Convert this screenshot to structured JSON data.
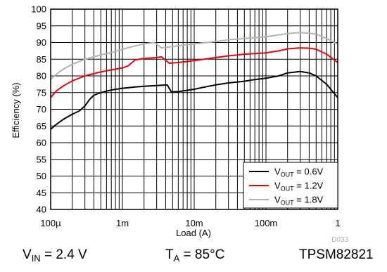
{
  "chart_data": {
    "type": "line",
    "xlabel": "Load (A)",
    "ylabel": "Efficiency (%)",
    "xscale": "log",
    "xlim": [
      0.0001,
      1
    ],
    "ylim": [
      40,
      100
    ],
    "x_ticks": [
      {
        "value": 0.0001,
        "label": "100µ"
      },
      {
        "value": 0.001,
        "label": "1m"
      },
      {
        "value": 0.01,
        "label": "10m"
      },
      {
        "value": 0.1,
        "label": "100m"
      },
      {
        "value": 1,
        "label": "1"
      }
    ],
    "y_ticks": [
      40,
      45,
      50,
      55,
      60,
      65,
      70,
      75,
      80,
      85,
      90,
      95,
      100
    ],
    "grid": true,
    "legend_position": "bottom-right",
    "series": [
      {
        "name": "VOUT = 0.6V",
        "legend_main": "V",
        "legend_sub": "OUT",
        "legend_rest": " = 0.6V",
        "color": "#000000",
        "points": [
          [
            0.0001,
            64
          ],
          [
            0.00012,
            65.5
          ],
          [
            0.00015,
            67
          ],
          [
            0.0002,
            68.5
          ],
          [
            0.00025,
            69.5
          ],
          [
            0.0003,
            71
          ],
          [
            0.00035,
            73
          ],
          [
            0.0004,
            74.2
          ],
          [
            0.0005,
            75
          ],
          [
            0.0007,
            75.8
          ],
          [
            0.001,
            76.3
          ],
          [
            0.0015,
            76.7
          ],
          [
            0.002,
            76.9
          ],
          [
            0.003,
            77.1
          ],
          [
            0.0042,
            77.3
          ],
          [
            0.0048,
            75.2
          ],
          [
            0.006,
            75.3
          ],
          [
            0.01,
            76
          ],
          [
            0.015,
            76.8
          ],
          [
            0.02,
            77.3
          ],
          [
            0.03,
            77.9
          ],
          [
            0.05,
            78.4
          ],
          [
            0.07,
            78.9
          ],
          [
            0.1,
            79.3
          ],
          [
            0.15,
            80
          ],
          [
            0.2,
            80.9
          ],
          [
            0.3,
            81.3
          ],
          [
            0.4,
            80.9
          ],
          [
            0.5,
            80
          ],
          [
            0.7,
            77.5
          ],
          [
            1,
            73.5
          ]
        ]
      },
      {
        "name": "VOUT = 1.2V",
        "legend_main": "V",
        "legend_sub": "OUT",
        "legend_rest": " = 1.2V",
        "color": "#e8000b",
        "points": [
          [
            0.0001,
            73.5
          ],
          [
            0.00012,
            75.5
          ],
          [
            0.00015,
            77
          ],
          [
            0.0002,
            78.5
          ],
          [
            0.0003,
            80
          ],
          [
            0.0005,
            81.2
          ],
          [
            0.0007,
            81.8
          ],
          [
            0.001,
            82.4
          ],
          [
            0.0012,
            83
          ],
          [
            0.0015,
            84.8
          ],
          [
            0.002,
            85.2
          ],
          [
            0.003,
            85.5
          ],
          [
            0.0035,
            85.7
          ],
          [
            0.0045,
            83.8
          ],
          [
            0.006,
            84
          ],
          [
            0.01,
            84.6
          ],
          [
            0.02,
            85.5
          ],
          [
            0.03,
            86
          ],
          [
            0.05,
            86.5
          ],
          [
            0.1,
            86.9
          ],
          [
            0.15,
            87.5
          ],
          [
            0.2,
            88.1
          ],
          [
            0.3,
            88.4
          ],
          [
            0.4,
            88.3
          ],
          [
            0.5,
            88
          ],
          [
            0.7,
            86.5
          ],
          [
            1,
            84
          ]
        ]
      },
      {
        "name": "VOUT = 1.8V",
        "legend_main": "V",
        "legend_sub": "OUT",
        "legend_rest": " = 1.8V",
        "color": "#b3b3b3",
        "points": [
          [
            0.0001,
            79
          ],
          [
            0.00012,
            80.5
          ],
          [
            0.00015,
            82
          ],
          [
            0.0002,
            83.5
          ],
          [
            0.0003,
            85
          ],
          [
            0.0005,
            86.3
          ],
          [
            0.0007,
            87
          ],
          [
            0.001,
            88
          ],
          [
            0.0015,
            89
          ],
          [
            0.002,
            89.6
          ],
          [
            0.0028,
            90
          ],
          [
            0.0035,
            88.4
          ],
          [
            0.005,
            88.8
          ],
          [
            0.01,
            89.6
          ],
          [
            0.02,
            90.3
          ],
          [
            0.03,
            90.8
          ],
          [
            0.05,
            91.2
          ],
          [
            0.1,
            91.7
          ],
          [
            0.15,
            92.3
          ],
          [
            0.2,
            92.7
          ],
          [
            0.3,
            93
          ],
          [
            0.4,
            92.8
          ],
          [
            0.5,
            92.5
          ],
          [
            0.7,
            91.2
          ],
          [
            1,
            89.5
          ]
        ]
      }
    ]
  },
  "figure_id": "D033",
  "conditions": {
    "vin": {
      "main": "V",
      "sub": "IN",
      "rest": " = 2.4 V"
    },
    "ta": {
      "main": "T",
      "sub": "A",
      "rest": " = 85°C"
    },
    "part": "TPSM82821"
  }
}
